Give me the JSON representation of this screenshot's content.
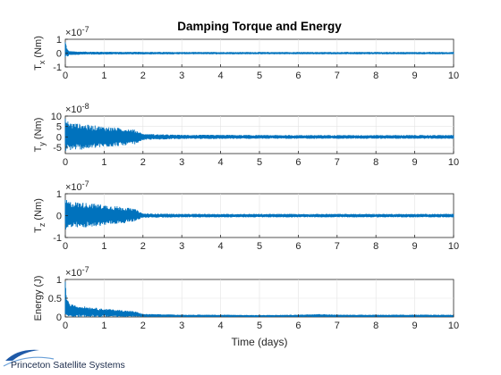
{
  "title": "Damping Torque and Energy",
  "xlabel": "Time (days)",
  "xlim": [
    0,
    10
  ],
  "xticks": [
    0,
    1,
    2,
    3,
    4,
    5,
    6,
    7,
    8,
    9,
    10
  ],
  "line_color": "#0072BD",
  "logo_text": "Princeton Satellite Systems",
  "chart_data": [
    {
      "type": "area",
      "ylabel": "T_x (Nm)",
      "ylabel_main": "T",
      "ylabel_sub": "x",
      "ylabel_unit": " (Nm)",
      "exponent": "×10",
      "exponent_power": "-7",
      "ylim": [
        -1,
        1
      ],
      "yticks": [
        -1,
        0,
        1
      ],
      "grid": true,
      "envelope": {
        "x": [
          0,
          0.05,
          0.1,
          0.3,
          0.5,
          1,
          1.5,
          2,
          3,
          4,
          5,
          6,
          7,
          8,
          9,
          10
        ],
        "y_upper": [
          0.9,
          0.3,
          0.15,
          0.12,
          0.11,
          0.1,
          0.09,
          0.09,
          0.08,
          0.08,
          0.08,
          0.08,
          0.08,
          0.08,
          0.08,
          0.08
        ],
        "y_lower": [
          -0.4,
          -0.3,
          -0.15,
          -0.12,
          -0.11,
          -0.1,
          -0.09,
          -0.09,
          -0.08,
          -0.08,
          -0.08,
          -0.08,
          -0.08,
          -0.08,
          -0.08,
          -0.08
        ]
      }
    },
    {
      "type": "area",
      "ylabel": "T_y (Nm)",
      "ylabel_main": "T",
      "ylabel_sub": "y",
      "ylabel_unit": " (Nm)",
      "exponent": "×10",
      "exponent_power": "-8",
      "ylim": [
        -8,
        10
      ],
      "yticks": [
        -5,
        0,
        5,
        10
      ],
      "grid": true,
      "envelope": {
        "x": [
          0,
          0.1,
          0.5,
          1,
          1.5,
          1.8,
          2,
          2.5,
          3,
          4,
          5,
          6,
          7,
          8,
          9,
          10
        ],
        "y_upper": [
          9,
          7,
          6,
          5,
          4.2,
          3.5,
          1.5,
          1.2,
          1.0,
          1.0,
          0.9,
          0.9,
          0.9,
          0.9,
          0.9,
          0.9
        ],
        "y_lower": [
          -7,
          -6.5,
          -6,
          -5,
          -4.2,
          -3.5,
          -1.5,
          -1.2,
          -1.0,
          -1.0,
          -0.9,
          -0.9,
          -0.9,
          -0.9,
          -0.9,
          -0.9
        ]
      }
    },
    {
      "type": "area",
      "ylabel": "T_z (Nm)",
      "ylabel_main": "T",
      "ylabel_sub": "z",
      "ylabel_unit": " (Nm)",
      "exponent": "×10",
      "exponent_power": "-7",
      "ylim": [
        -1,
        1
      ],
      "yticks": [
        -1,
        0,
        1
      ],
      "grid": true,
      "envelope": {
        "x": [
          0,
          0.1,
          0.5,
          1,
          1.5,
          1.8,
          2,
          2.5,
          3,
          4,
          5,
          6,
          7,
          8,
          9,
          10
        ],
        "y_upper": [
          0.75,
          0.65,
          0.6,
          0.5,
          0.4,
          0.3,
          0.1,
          0.09,
          0.08,
          0.08,
          0.08,
          0.08,
          0.08,
          0.08,
          0.08,
          0.08
        ],
        "y_lower": [
          -0.65,
          -0.6,
          -0.55,
          -0.45,
          -0.35,
          -0.25,
          -0.1,
          -0.09,
          -0.08,
          -0.08,
          -0.08,
          -0.08,
          -0.08,
          -0.08,
          -0.08,
          -0.08
        ]
      }
    },
    {
      "type": "area",
      "ylabel": "Energy (J)",
      "ylabel_main": "Energy (J)",
      "ylabel_sub": "",
      "ylabel_unit": "",
      "exponent": "×10",
      "exponent_power": "-7",
      "ylim": [
        0,
        1
      ],
      "yticks": [
        0,
        0.5,
        1
      ],
      "grid": true,
      "envelope": {
        "x": [
          0,
          0.03,
          0.1,
          0.3,
          0.5,
          1,
          1.5,
          1.8,
          2,
          3,
          4,
          5,
          6,
          6.5,
          7,
          8,
          9,
          10
        ],
        "y_upper": [
          0.95,
          0.6,
          0.35,
          0.3,
          0.28,
          0.22,
          0.18,
          0.15,
          0.08,
          0.06,
          0.06,
          0.05,
          0.06,
          0.08,
          0.06,
          0.06,
          0.06,
          0.06
        ],
        "y_lower": [
          0,
          0,
          0,
          0,
          0,
          0,
          0,
          0,
          0,
          0,
          0,
          0,
          0,
          0,
          0,
          0,
          0,
          0
        ]
      }
    }
  ]
}
